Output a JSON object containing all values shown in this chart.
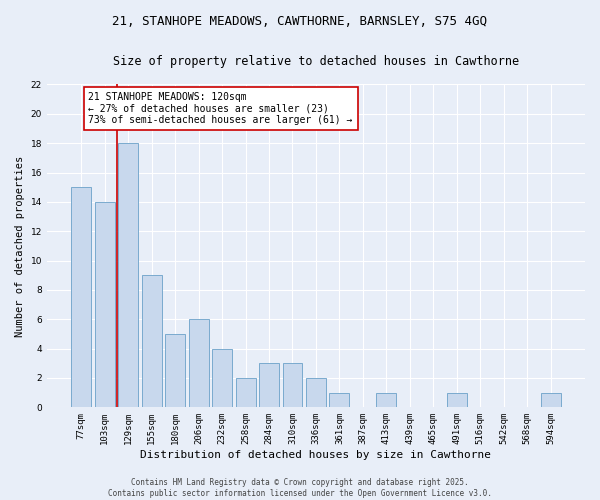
{
  "title_line1": "21, STANHOPE MEADOWS, CAWTHORNE, BARNSLEY, S75 4GQ",
  "title_line2": "Size of property relative to detached houses in Cawthorne",
  "xlabel": "Distribution of detached houses by size in Cawthorne",
  "ylabel": "Number of detached properties",
  "categories": [
    "77sqm",
    "103sqm",
    "129sqm",
    "155sqm",
    "180sqm",
    "206sqm",
    "232sqm",
    "258sqm",
    "284sqm",
    "310sqm",
    "336sqm",
    "361sqm",
    "387sqm",
    "413sqm",
    "439sqm",
    "465sqm",
    "491sqm",
    "516sqm",
    "542sqm",
    "568sqm",
    "594sqm"
  ],
  "values": [
    15,
    14,
    18,
    9,
    5,
    6,
    4,
    2,
    3,
    3,
    2,
    1,
    0,
    1,
    0,
    0,
    1,
    0,
    0,
    0,
    1
  ],
  "bar_color": "#c8d8ed",
  "bar_edge_color": "#7aaace",
  "vline_color": "#cc0000",
  "vline_index": 1.5,
  "annotation_text": "21 STANHOPE MEADOWS: 120sqm\n← 27% of detached houses are smaller (23)\n73% of semi-detached houses are larger (61) →",
  "annotation_box_facecolor": "#ffffff",
  "annotation_box_edgecolor": "#cc0000",
  "ylim": [
    0,
    22
  ],
  "yticks": [
    0,
    2,
    4,
    6,
    8,
    10,
    12,
    14,
    16,
    18,
    20,
    22
  ],
  "background_color": "#e8eef8",
  "grid_color": "#ffffff",
  "footer": "Contains HM Land Registry data © Crown copyright and database right 2025.\nContains public sector information licensed under the Open Government Licence v3.0.",
  "title_fontsize": 9,
  "subtitle_fontsize": 8.5,
  "xlabel_fontsize": 8,
  "ylabel_fontsize": 7.5,
  "tick_fontsize": 6.5,
  "annotation_fontsize": 7,
  "footer_fontsize": 5.5
}
